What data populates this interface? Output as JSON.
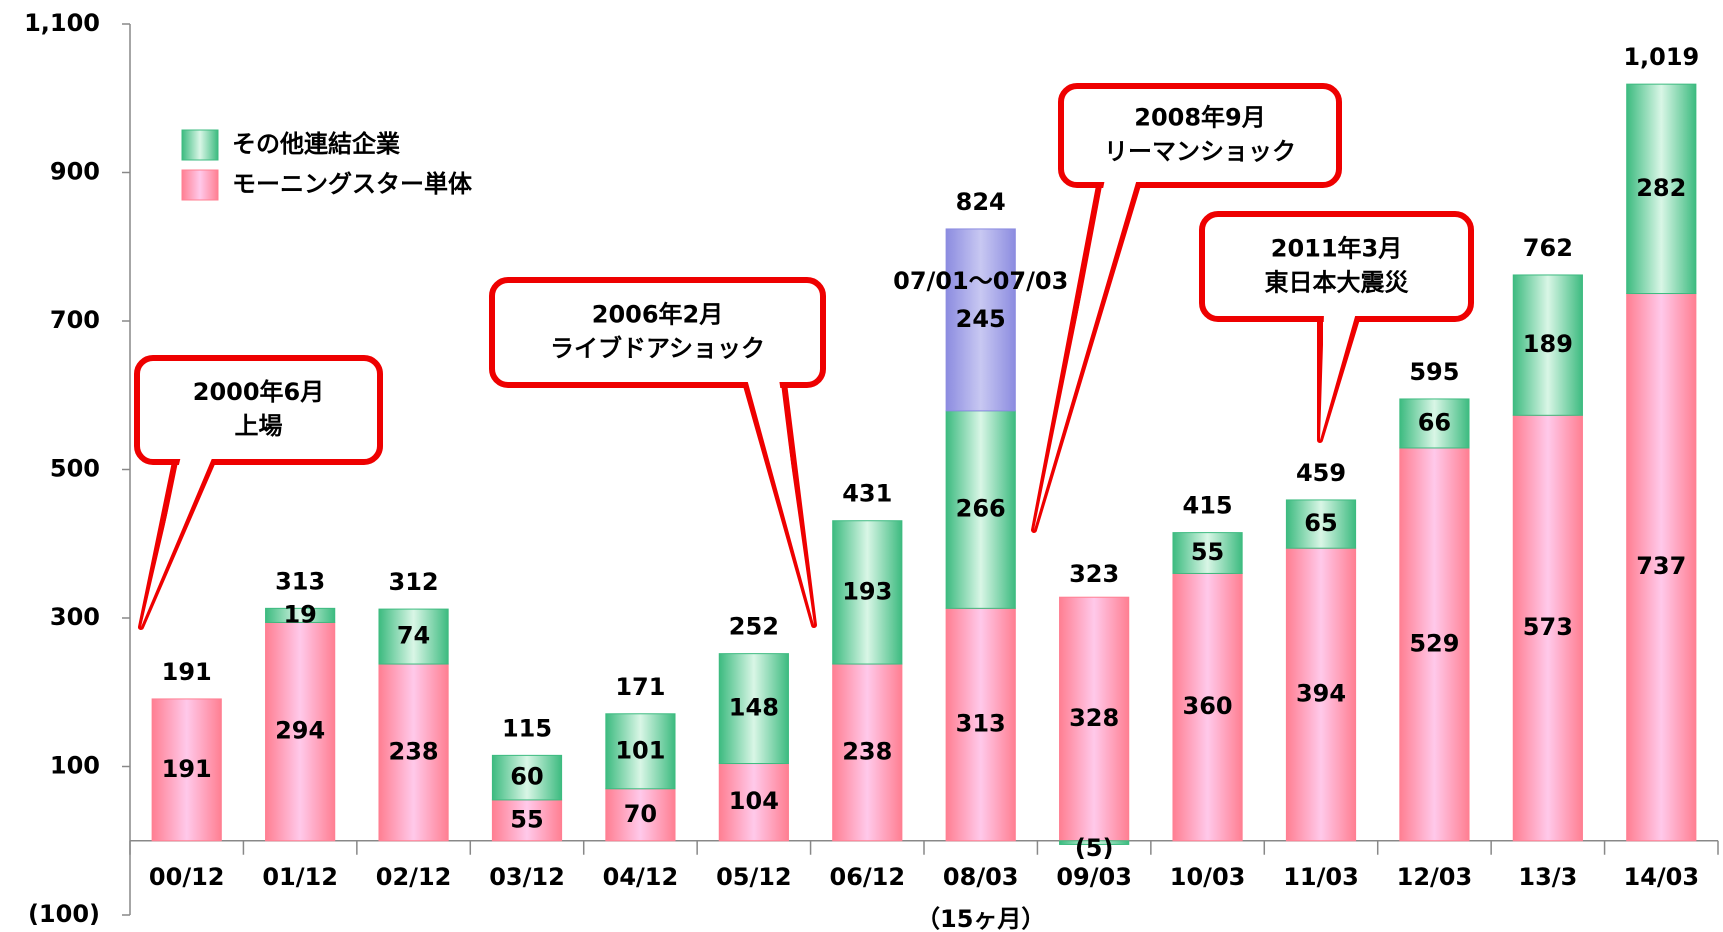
{
  "chart_data": {
    "type": "stacked_bar",
    "categories": [
      "00/12",
      "01/12",
      "02/12",
      "03/12",
      "04/12",
      "05/12",
      "06/12",
      "08/03",
      "09/03",
      "10/03",
      "11/03",
      "12/03",
      "13/3",
      "14/03"
    ],
    "series": [
      {
        "name": "モーニングスター単体",
        "color": "#ff7f92",
        "values": [
          191,
          294,
          238,
          55,
          70,
          104,
          238,
          313,
          328,
          360,
          394,
          529,
          573,
          737
        ]
      },
      {
        "name": "その他連結企業",
        "color": "#3dbb80",
        "values": [
          null,
          19,
          74,
          60,
          101,
          148,
          193,
          266,
          -5,
          55,
          65,
          66,
          189,
          282
        ],
        "value_labels": [
          null,
          "19",
          "74",
          "60",
          "101",
          "148",
          "193",
          "266",
          "(5)",
          "55",
          "65",
          "66",
          "189",
          "282"
        ]
      },
      {
        "name": "07/01～07/03",
        "color": "#8c8ce0",
        "values": [
          null,
          null,
          null,
          null,
          null,
          null,
          null,
          245,
          null,
          null,
          null,
          null,
          null,
          null
        ]
      }
    ],
    "totals": [
      191,
      313,
      312,
      115,
      171,
      252,
      431,
      824,
      323,
      415,
      459,
      595,
      762,
      1019
    ],
    "total_labels": [
      "191",
      "313",
      "312",
      "115",
      "171",
      "252",
      "431",
      "824",
      "323",
      "415",
      "459",
      "595",
      "762",
      "1,019"
    ],
    "ylim": [
      -100,
      1100
    ],
    "yticks": [
      {
        "value": -100,
        "label": "(100)"
      },
      100,
      300,
      500,
      700,
      900,
      {
        "value": 1100,
        "label": "1,100"
      }
    ],
    "legend": "upper left",
    "legend_series": [
      1,
      0
    ],
    "annotations": [
      [
        "2000年6月",
        "上場"
      ],
      [
        "2006年2月",
        "ライブドアショック"
      ],
      [
        "2008年9月",
        "リーマンショック"
      ],
      [
        "2011年3月",
        "東日本大震災"
      ]
    ],
    "note": "（15ヶ月）"
  }
}
